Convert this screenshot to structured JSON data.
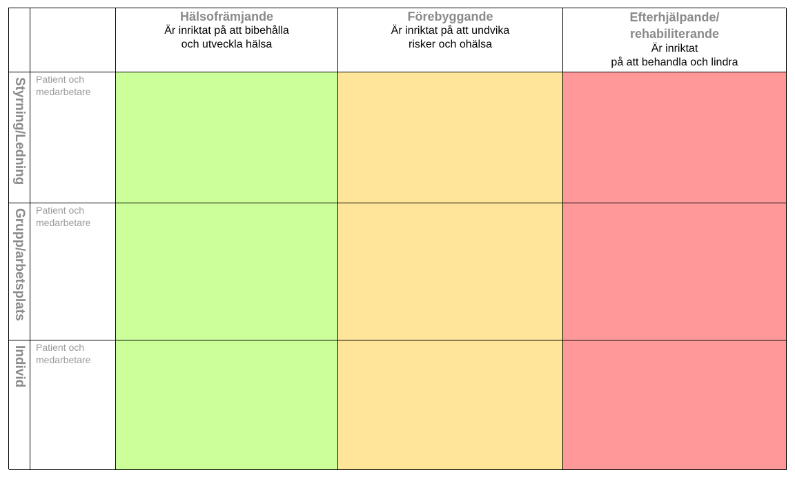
{
  "columns": [
    {
      "title": "Hälsofrämjande",
      "desc_line1": "Är inriktat på att bibehålla",
      "desc_line2": "och utveckla hälsa",
      "color": "#ccff99"
    },
    {
      "title": "Förebyggande",
      "desc_line1": "Är inriktat på att undvika",
      "desc_line2": "risker och ohälsa",
      "color": "#ffe599"
    },
    {
      "title_line1": "Efterhjälpande/",
      "title_line2": "rehabiliterande",
      "desc_line1": "Är inriktat",
      "desc_line2": "på att behandla och lindra",
      "color": "#ff9999"
    }
  ],
  "rows": [
    {
      "label": "Styrning/Ledning",
      "sub_line1": "Patient och",
      "sub_line2": "medarbetare"
    },
    {
      "label": "Grupp/arbetsplats",
      "sub_line1": "Patient och",
      "sub_line2": "medarbetare"
    },
    {
      "label": "Individ",
      "sub_line1": "Patient och",
      "sub_line2": "medarbetare"
    }
  ]
}
